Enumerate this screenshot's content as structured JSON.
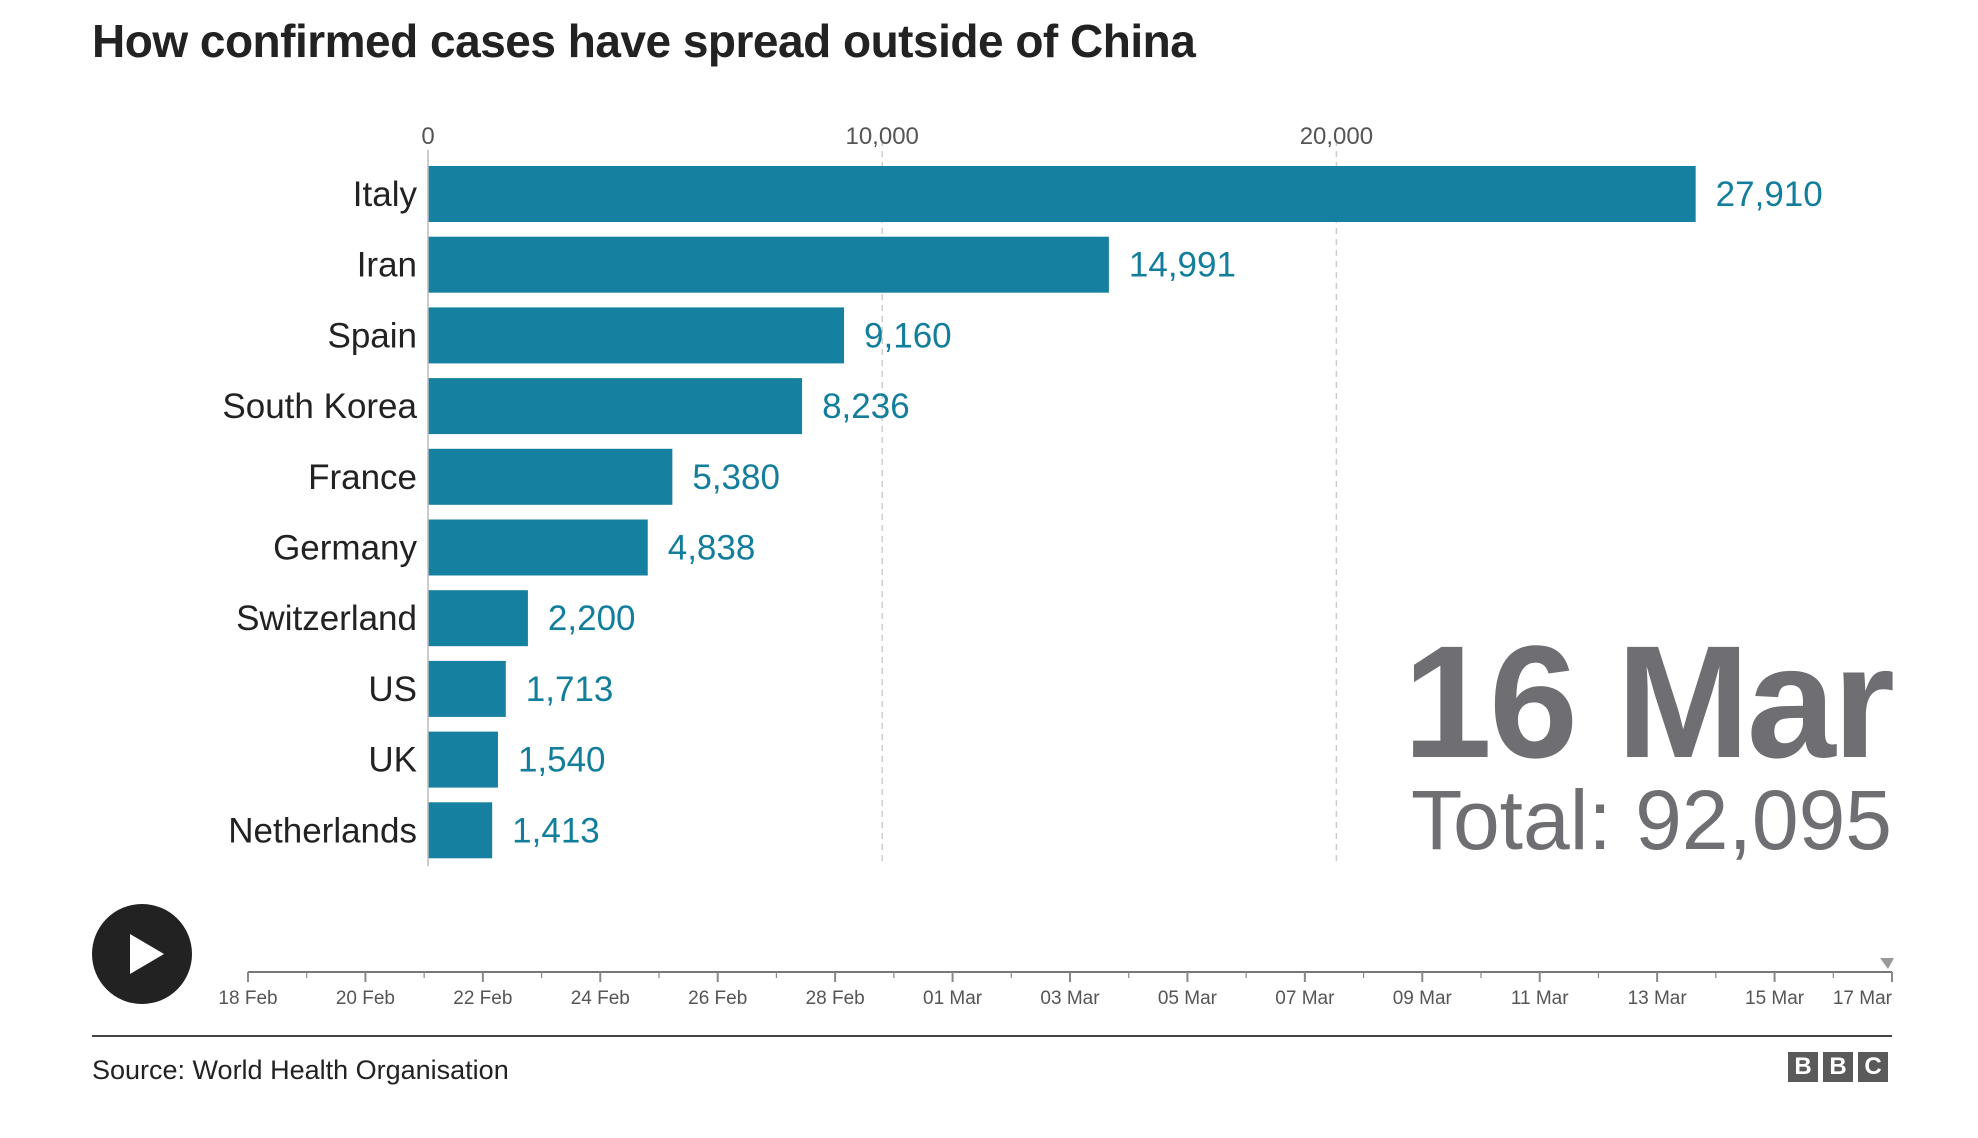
{
  "title": "How confirmed cases have spread outside of China",
  "chart_data": {
    "type": "bar",
    "orientation": "horizontal",
    "categories": [
      "Italy",
      "Iran",
      "Spain",
      "South Korea",
      "France",
      "Germany",
      "Switzerland",
      "US",
      "UK",
      "Netherlands"
    ],
    "values": [
      27910,
      14991,
      9160,
      8236,
      5380,
      4838,
      2200,
      1713,
      1540,
      1413
    ],
    "value_labels": [
      "27,910",
      "14,991",
      "9,160",
      "8,236",
      "5,380",
      "4,838",
      "2,200",
      "1,713",
      "1,540",
      "1,413"
    ],
    "xticks": [
      0,
      10000,
      20000
    ],
    "xtick_labels": [
      "0",
      "10,000",
      "20,000"
    ],
    "xlim": [
      0,
      28000
    ],
    "grid": true,
    "axis_position": "top",
    "bar_color": "#1680a0",
    "value_label_color": "#137e9c"
  },
  "overlay": {
    "date": "16 Mar",
    "total": "Total: 92,095"
  },
  "timeline": {
    "labels": [
      "18 Feb",
      "20 Feb",
      "22 Feb",
      "24 Feb",
      "26 Feb",
      "28 Feb",
      "01 Mar",
      "03 Mar",
      "05 Mar",
      "07 Mar",
      "09 Mar",
      "11 Mar",
      "13 Mar",
      "15 Mar",
      "17 Mar"
    ],
    "days_in_range": 28,
    "current": "16 Mar",
    "play_icon": "play-icon"
  },
  "footer": {
    "source": "Source: World Health Organisation",
    "logo_letters": [
      "B",
      "B",
      "C"
    ]
  }
}
